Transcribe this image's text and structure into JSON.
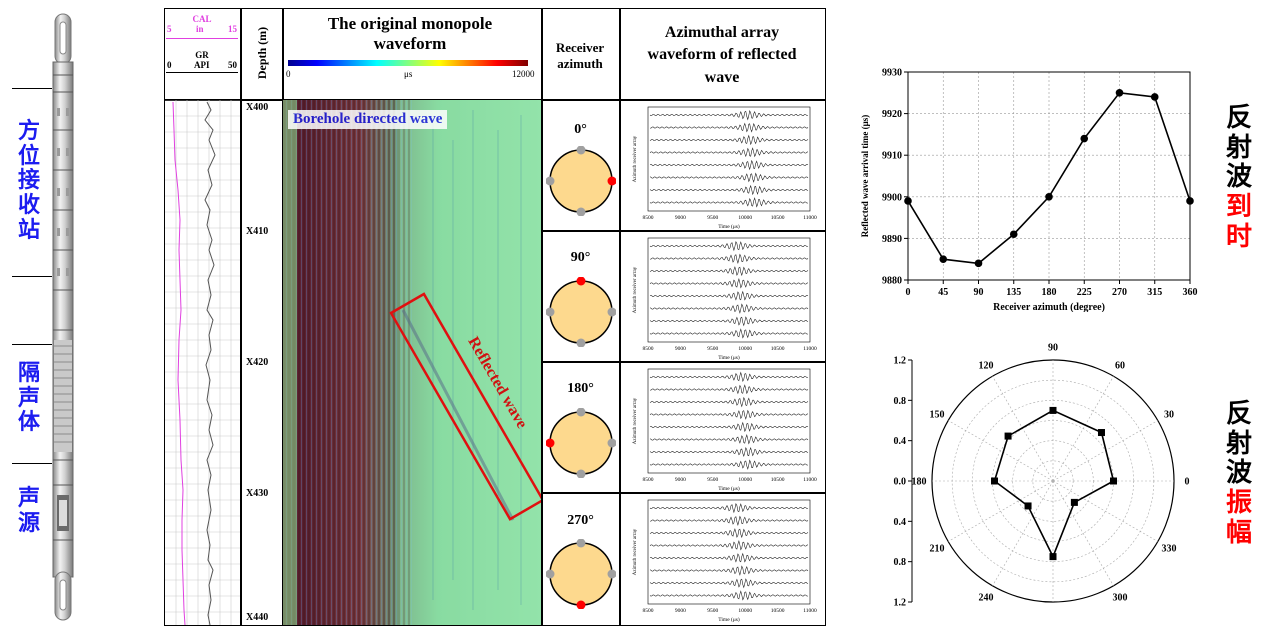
{
  "tool": {
    "section_labels": [
      "方位接收站",
      "隔声体",
      "声源"
    ]
  },
  "log_panel": {
    "cal_title": "CAL",
    "cal_unit": "in",
    "cal_min": "5",
    "cal_max": "15",
    "gr_title": "GR",
    "gr_unit": "API",
    "gr_min": "0",
    "gr_max": "50",
    "depth_title": "Depth (m)",
    "depth_labels": [
      "X400",
      "X410",
      "X420",
      "X430",
      "X440"
    ],
    "waveform_title": "The original monopole waveform",
    "colorbar_min": "0",
    "colorbar_unit": "μs",
    "colorbar_max": "12000",
    "receiver_title": "Receiver azimuth",
    "azimuthal_title": "Azimuthal array waveform of reflected wave",
    "direct_wave_label": "Borehole directed wave",
    "reflected_wave_label": "Reflected wave",
    "azimuths": [
      "0°",
      "90°",
      "180°",
      "270°"
    ],
    "mini_ylabel": "Azimuth receiver array",
    "mini_xlabel": "Time (μs)",
    "mini_xticks": [
      "8500",
      "9000",
      "9500",
      "10000",
      "10500",
      "11000"
    ]
  },
  "right_labels": {
    "arrival": [
      "反",
      "射",
      "波",
      "到",
      "时"
    ],
    "amplitude": [
      "反",
      "射",
      "波",
      "振",
      "幅"
    ],
    "black": "#000000",
    "red": "#ff0000"
  },
  "chart_data": [
    {
      "type": "line",
      "xlabel": "Receiver azimuth (degree)",
      "ylabel": "Reflected wave arrival time (μs)",
      "x": [
        0,
        45,
        90,
        135,
        180,
        225,
        270,
        315,
        360
      ],
      "y": [
        9899,
        9885,
        9884,
        9891,
        9900,
        9914,
        9925,
        9924,
        9899
      ],
      "xlim": [
        0,
        360
      ],
      "ylim": [
        9880,
        9930
      ],
      "xticks": [
        "0",
        "45",
        "90",
        "135",
        "180",
        "225",
        "270",
        "315",
        "360"
      ],
      "yticks": [
        "9880",
        "9890",
        "9900",
        "9910",
        "9920",
        "9930"
      ],
      "grid": true,
      "marker": "circle"
    },
    {
      "type": "scatter",
      "polar": true,
      "theta": [
        0,
        45,
        90,
        135,
        180,
        225,
        270,
        315
      ],
      "r": [
        0.6,
        0.68,
        0.7,
        0.63,
        0.58,
        0.35,
        0.75,
        0.3
      ],
      "rlim": [
        0,
        1.2
      ],
      "angle_ticks": [
        "0",
        "30",
        "60",
        "90",
        "120",
        "150",
        "180",
        "210",
        "240",
        "270",
        "300",
        "330"
      ],
      "r_ticks": [
        "1.2",
        "0.8",
        "0.4",
        "0.0",
        "0.4",
        "0.8",
        "1.2"
      ],
      "grid": true,
      "marker": "square"
    }
  ]
}
